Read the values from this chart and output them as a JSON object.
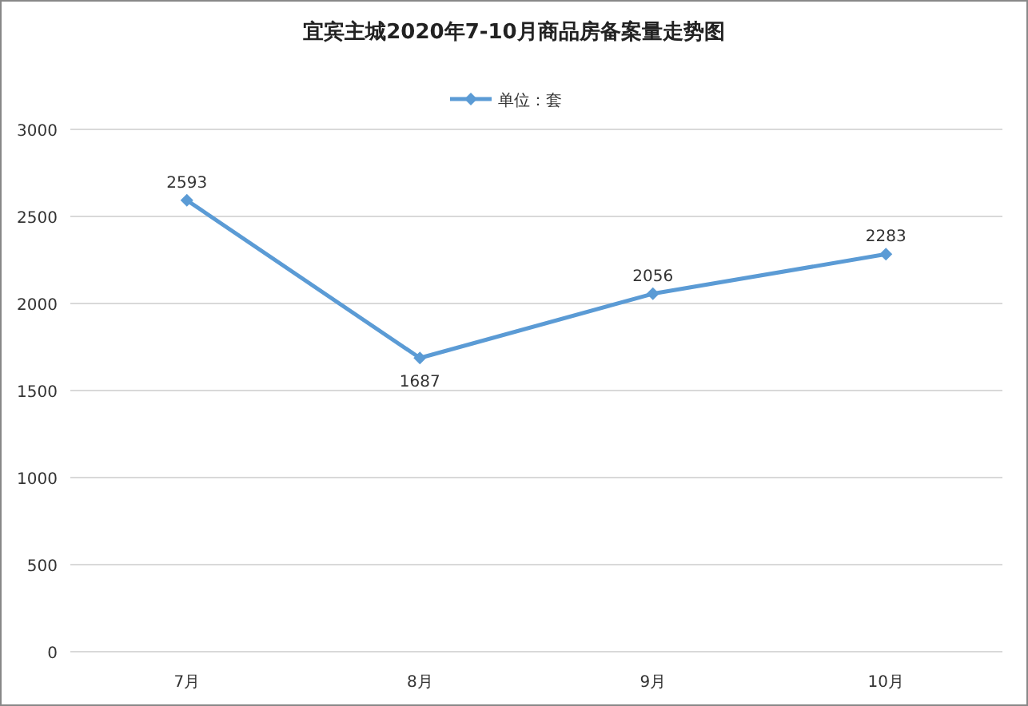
{
  "chart_data": {
    "type": "line",
    "title": "宜宾主城2020年7-10月商品房备案量走势图",
    "categories": [
      "7月",
      "8月",
      "9月",
      "10月"
    ],
    "series": [
      {
        "name": "单位：套",
        "color": "#5b9bd5",
        "values": [
          2593,
          1687,
          2056,
          2283
        ]
      }
    ],
    "ylim": [
      0,
      3000
    ],
    "yticks": [
      0,
      500,
      1000,
      1500,
      2000,
      2500,
      3000
    ],
    "grid": "y",
    "legend": "top",
    "marker": "diamond",
    "data_labels": true
  }
}
